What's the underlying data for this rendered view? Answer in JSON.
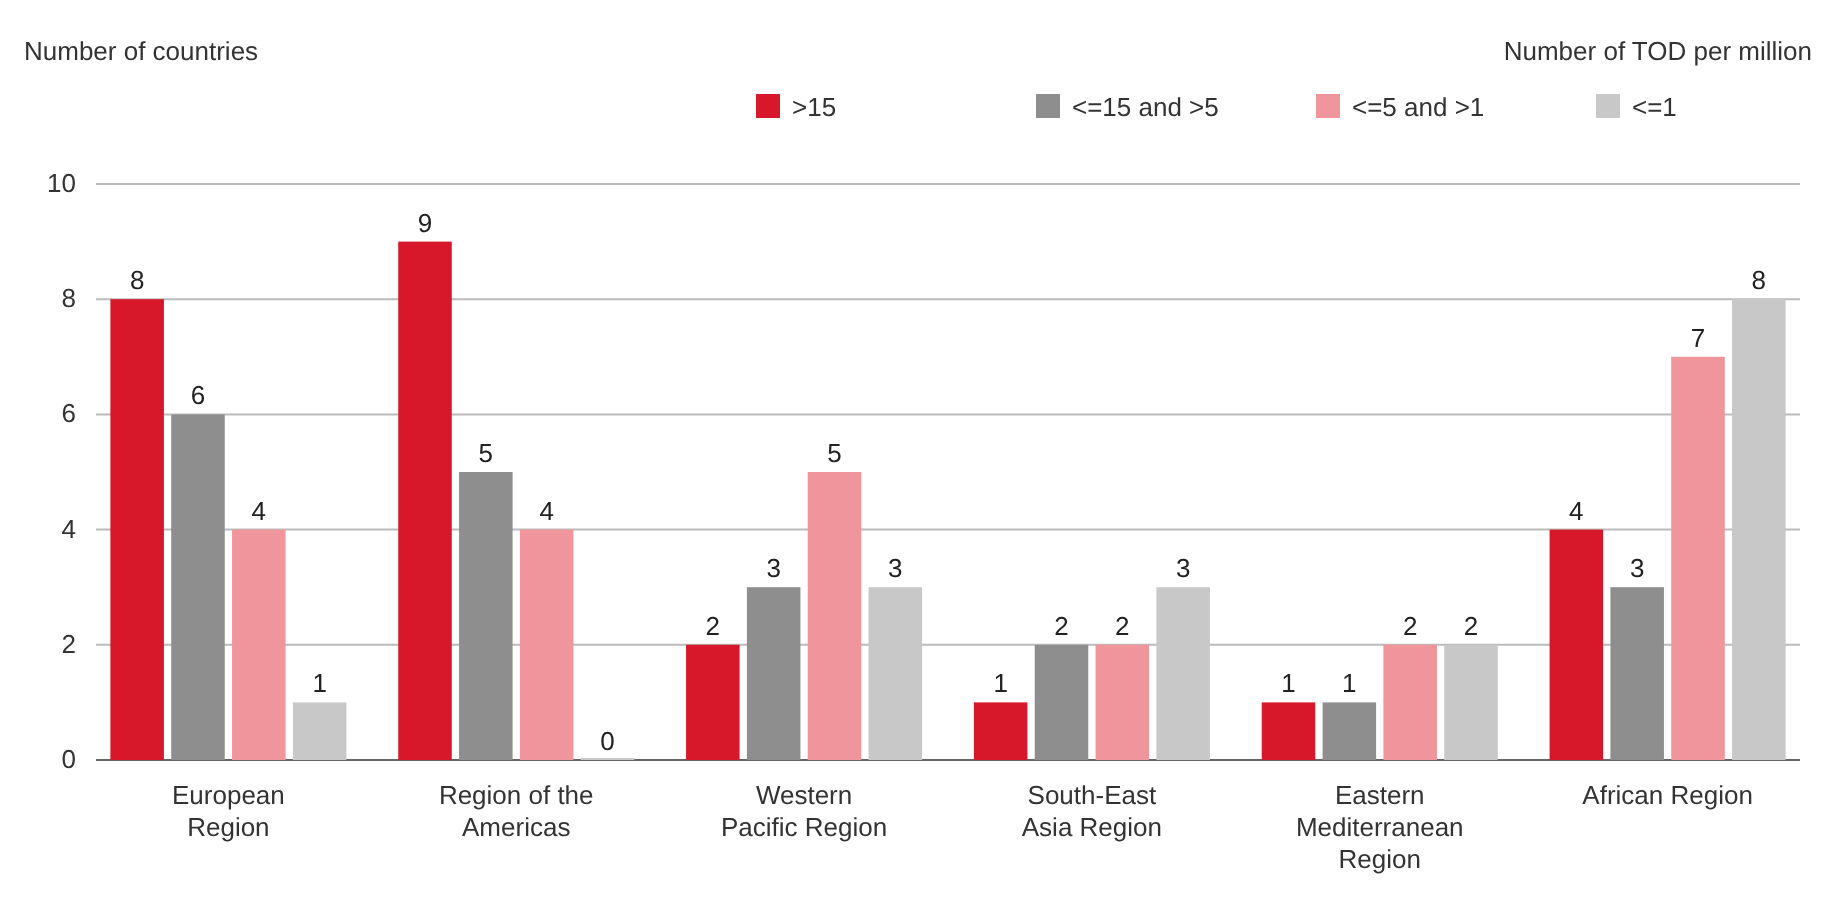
{
  "chart_data": {
    "type": "bar",
    "ylabel": "Number of countries",
    "legend_title": "Number of TOD per million",
    "categories": [
      "European Region",
      "Region of the Americas",
      "Western Pacific Region",
      "South-East Asia Region",
      "Eastern Mediterranean Region",
      "African Region"
    ],
    "series": [
      {
        "name": ">15",
        "color": "#d7182a",
        "values": [
          8,
          9,
          2,
          1,
          1,
          4
        ]
      },
      {
        "name": "<=15 and >5",
        "color": "#8e8e8e",
        "values": [
          6,
          5,
          3,
          2,
          1,
          3
        ]
      },
      {
        "name": "<=5 and >1",
        "color": "#f0959b",
        "values": [
          4,
          4,
          5,
          2,
          2,
          7
        ]
      },
      {
        "name": "<=1",
        "color": "#c8c8c8",
        "values": [
          1,
          0,
          3,
          3,
          2,
          8
        ]
      }
    ],
    "ylim": [
      0,
      10
    ],
    "yticks": [
      0,
      2,
      4,
      6,
      8,
      10
    ],
    "grid": "y",
    "legend": "top right",
    "data_labels": true
  }
}
